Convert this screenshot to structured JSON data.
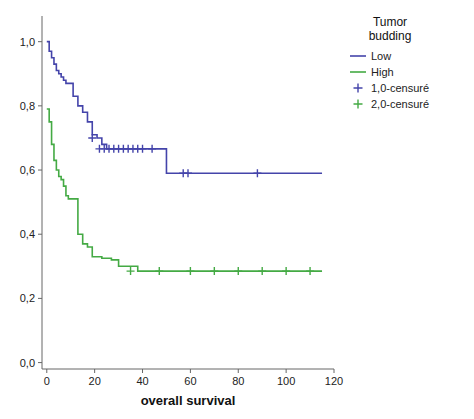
{
  "chart_data": {
    "type": "step",
    "title": "Tumor\nbudding",
    "xlabel": "overall survival",
    "xlim": [
      -2,
      120
    ],
    "ylim": [
      -0.02,
      1.08
    ],
    "xticks": [
      0,
      20,
      40,
      60,
      80,
      100,
      120
    ],
    "yticks": [
      {
        "value": 0.0,
        "label": "0,0"
      },
      {
        "value": 0.2,
        "label": "0,2"
      },
      {
        "value": 0.4,
        "label": "0,4"
      },
      {
        "value": 0.6,
        "label": "0,6"
      },
      {
        "value": 0.8,
        "label": "0,8"
      },
      {
        "value": 1.0,
        "label": "1,0"
      }
    ],
    "grid": false,
    "legend": "right",
    "series": [
      {
        "name": "Low",
        "type": "step",
        "color": "#4444aa",
        "x": [
          0,
          1,
          2,
          3,
          4,
          5,
          6,
          7,
          8,
          9,
          11,
          13,
          15,
          17,
          19,
          21,
          23,
          25,
          27,
          29,
          31,
          33,
          35,
          37,
          39,
          41,
          43,
          47,
          50,
          57,
          88,
          115
        ],
        "values": [
          1.0,
          0.97,
          0.95,
          0.93,
          0.91,
          0.9,
          0.89,
          0.88,
          0.87,
          0.87,
          0.83,
          0.8,
          0.78,
          0.75,
          0.71,
          0.7,
          0.68,
          0.666,
          0.666,
          0.666,
          0.666,
          0.666,
          0.666,
          0.666,
          0.666,
          0.666,
          0.666,
          0.666,
          0.59,
          0.59,
          0.59,
          0.59
        ]
      },
      {
        "name": "High",
        "type": "step",
        "color": "#44aa44",
        "x": [
          0,
          1,
          2,
          3,
          4,
          5,
          6,
          7,
          8,
          9,
          11,
          13,
          15,
          17,
          19,
          21,
          23,
          25,
          27,
          30,
          32,
          35,
          38,
          40,
          47,
          50,
          115
        ],
        "values": [
          0.79,
          0.75,
          0.68,
          0.63,
          0.6,
          0.58,
          0.57,
          0.55,
          0.52,
          0.51,
          0.51,
          0.4,
          0.37,
          0.36,
          0.33,
          0.33,
          0.325,
          0.325,
          0.32,
          0.3,
          0.3,
          0.3,
          0.285,
          0.285,
          0.285,
          0.285,
          0.285
        ]
      },
      {
        "name": "1,0-censuré",
        "type": "scatter",
        "marker": "+",
        "color": "#4444aa",
        "x": [
          19,
          22,
          24,
          26,
          28,
          30,
          32,
          34,
          36,
          38,
          40,
          44,
          57,
          59,
          88
        ],
        "values": [
          0.7,
          0.666,
          0.666,
          0.666,
          0.666,
          0.666,
          0.666,
          0.666,
          0.666,
          0.666,
          0.666,
          0.666,
          0.59,
          0.59,
          0.59
        ]
      },
      {
        "name": "2,0-censuré",
        "type": "scatter",
        "marker": "+",
        "color": "#44aa44",
        "x": [
          35,
          47,
          60,
          70,
          80,
          90,
          100,
          110
        ],
        "values": [
          0.285,
          0.285,
          0.285,
          0.285,
          0.285,
          0.285,
          0.285,
          0.285
        ]
      }
    ]
  }
}
